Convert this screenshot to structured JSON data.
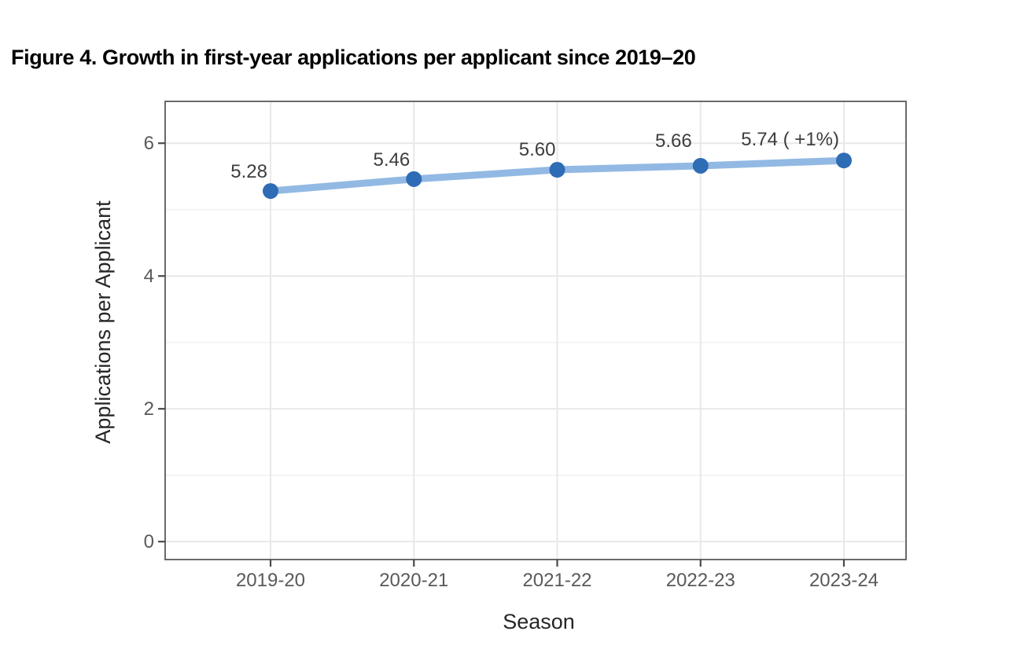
{
  "figure": {
    "title": "Figure 4. Growth in first-year applications per applicant since 2019–20"
  },
  "chart_data": {
    "type": "line",
    "categories": [
      "2019-20",
      "2020-21",
      "2021-22",
      "2022-23",
      "2023-24"
    ],
    "series": [
      {
        "name": "Applications per Applicant",
        "values": [
          5.28,
          5.46,
          5.6,
          5.66,
          5.74
        ]
      }
    ],
    "point_labels": [
      "5.28",
      "5.46",
      "5.60",
      "5.66",
      "5.74 ( +1%)"
    ],
    "title": "",
    "xlabel": "Season",
    "ylabel": "Applications per Applicant",
    "ylim": [
      -0.27,
      6.63
    ],
    "yticks": [
      0,
      2,
      4,
      6
    ],
    "yticks_minor": [
      1,
      3,
      5
    ],
    "grid": "major-and-minor",
    "legend": "none",
    "colors": {
      "line": "#92b9e3",
      "point": "#2e6cb5",
      "grid_major": "#e8e8e8",
      "grid_minor": "#f1f1f1",
      "panel_border": "#6a6a6a",
      "tick_mark": "#4a4a4a",
      "tick_label": "#595959",
      "axis_title": "#262626",
      "data_label": "#3d3d3d",
      "background": "#ffffff"
    }
  }
}
